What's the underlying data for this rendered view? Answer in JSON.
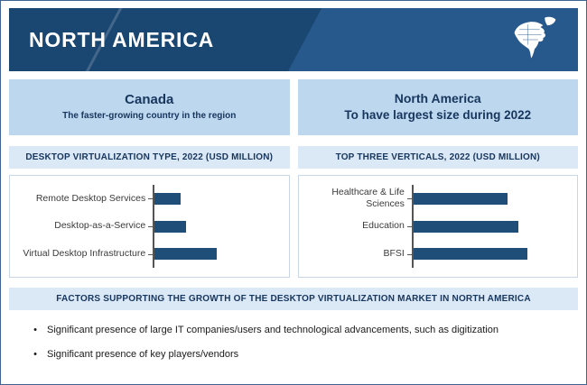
{
  "header": {
    "title": "NORTH AMERICA"
  },
  "highlights": [
    {
      "title": "Canada",
      "subtitle": "The faster-growing country in the region"
    },
    {
      "title": "North America",
      "subtitle": "To have  largest size during 2022"
    }
  ],
  "chart_data": [
    {
      "type": "bar",
      "orientation": "horizontal",
      "title": "DESKTOP VIRTUALIZATION TYPE, 2022 (USD MILLION)",
      "categories": [
        "Remote Desktop Services",
        "Desktop-as-a-Service",
        "Virtual Desktop Infrastructure"
      ],
      "values": [
        30,
        36,
        72
      ],
      "scale_max": 145,
      "value_axis_labels_shown": false,
      "grid": false,
      "bar_color": "#1F4E79"
    },
    {
      "type": "bar",
      "orientation": "horizontal",
      "title": "TOP THREE VERTICALS, 2022 (USD MILLION)",
      "categories": [
        "Healthcare & Life Sciences",
        "Education",
        "BFSI"
      ],
      "values": [
        110,
        122,
        133
      ],
      "scale_max": 180,
      "value_axis_labels_shown": false,
      "grid": false,
      "bar_color": "#1F4E79"
    }
  ],
  "factors": {
    "header": "FACTORS SUPPORTING THE GROWTH OF THE DESKTOP VIRTUALIZATION MARKET IN NORTH AMERICA",
    "items": [
      "Significant presence of large IT companies/users and technological advancements, such as digitization",
      "Significant presence of key players/vendors"
    ]
  },
  "colors": {
    "header_bg": "#1a4672",
    "header_bg_alt": "#27598c",
    "panel_bg": "#BDD7EE",
    "section_bg": "#dbe8f6",
    "bar": "#1F4E79",
    "text_navy": "#17365D"
  }
}
